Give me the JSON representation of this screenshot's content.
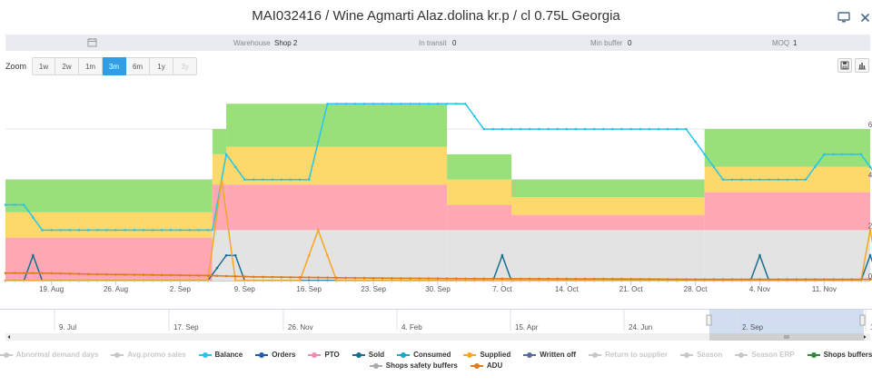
{
  "header": {
    "title": "MAI032416 / Wine Agmarti Alaz.dolina kr.p / cl 0.75L Georgia",
    "monitor_icon": "monitor-icon",
    "close_icon": "close-icon"
  },
  "infobar": {
    "warehouse_label": "Warehouse",
    "warehouse_value": "Shop 2",
    "in_transit_label": "In transit",
    "in_transit_value": "0",
    "min_buffer_label": "Min buffer",
    "min_buffer_value": "0",
    "moq_label": "MOQ",
    "moq_value": "1"
  },
  "zoom": {
    "label": "Zoom",
    "buttons": [
      {
        "label": "1w",
        "state": "normal"
      },
      {
        "label": "2w",
        "state": "normal"
      },
      {
        "label": "1m",
        "state": "normal"
      },
      {
        "label": "3m",
        "state": "active"
      },
      {
        "label": "6m",
        "state": "normal"
      },
      {
        "label": "1y",
        "state": "normal"
      },
      {
        "label": "3y",
        "state": "disabled"
      }
    ]
  },
  "tools": {
    "save_icon": "save-icon",
    "chart_icon": "bar-chart-icon"
  },
  "chart_data": {
    "type": "area",
    "x_tick_labels": [
      "19. Aug",
      "26. Aug",
      "2. Sep",
      "9. Sep",
      "16. Sep",
      "23. Sep",
      "30. Sep",
      "7. Oct",
      "14. Oct",
      "21. Oct",
      "28. Oct",
      "4. Nov",
      "11. Nov"
    ],
    "x_start_tick": "19. Aug",
    "days_start": -5,
    "days_end": 89,
    "y_tick_labels": [
      "0",
      "2",
      "4",
      "6"
    ],
    "ylim": [
      0,
      7.8
    ],
    "grid": true,
    "buffer_zones": [
      {
        "from": -5,
        "to": 17.5,
        "grey": 0,
        "red": 1.7,
        "yellow": 2.7,
        "green": 4.0
      },
      {
        "from": 17.5,
        "to": 19,
        "grey": 2.0,
        "red": 3.8,
        "yellow": 5.0,
        "green": 6.0
      },
      {
        "from": 19,
        "to": 43,
        "grey": 2.0,
        "red": 3.8,
        "yellow": 5.3,
        "green": 7.0
      },
      {
        "from": 43,
        "to": 50,
        "grey": 2.0,
        "red": 3.0,
        "yellow": 4.0,
        "green": 5.0
      },
      {
        "from": 50,
        "to": 71,
        "grey": 2.0,
        "red": 2.6,
        "yellow": 3.3,
        "green": 4.0
      },
      {
        "from": 71,
        "to": 89,
        "grey": 2.0,
        "red": 3.5,
        "yellow": 4.5,
        "green": 6.0
      },
      {
        "from": 89,
        "to": 98,
        "grey": 2.0,
        "red": 3.2,
        "yellow": 4.0,
        "green": 5.0
      },
      {
        "from": 98,
        "to": 103,
        "grey": 2.0,
        "red": 2.7,
        "yellow": 3.4,
        "green": 4.0
      },
      {
        "from": 103,
        "to": 125,
        "grey": 1.5,
        "red": 1.9,
        "yellow": 2.4,
        "green": 3.0
      }
    ],
    "series": [
      {
        "name": "Balance",
        "color": "#29c4e8",
        "points": [
          [
            -5,
            3
          ],
          [
            -3,
            3
          ],
          [
            -1,
            2
          ],
          [
            16,
            2
          ],
          [
            17.5,
            2
          ],
          [
            19,
            5
          ],
          [
            21,
            4
          ],
          [
            28,
            4
          ],
          [
            30,
            7
          ],
          [
            45,
            7
          ],
          [
            47,
            6
          ],
          [
            69,
            6
          ],
          [
            73,
            4
          ],
          [
            82,
            4
          ],
          [
            84,
            5
          ],
          [
            88,
            5
          ],
          [
            90,
            4
          ],
          [
            93,
            4
          ],
          [
            95,
            3
          ],
          [
            99,
            3
          ],
          [
            104,
            1
          ],
          [
            105,
            2
          ],
          [
            114,
            2
          ],
          [
            117,
            1
          ],
          [
            125,
            1
          ]
        ]
      },
      {
        "name": "Sold",
        "color": "#1a6f8f",
        "points": [
          [
            -5,
            0
          ],
          [
            -3,
            0
          ],
          [
            -2,
            1
          ],
          [
            -1,
            0
          ],
          [
            17,
            0
          ],
          [
            19,
            1
          ],
          [
            20,
            1
          ],
          [
            21,
            0
          ],
          [
            48,
            0
          ],
          [
            49,
            1
          ],
          [
            50,
            0
          ],
          [
            76,
            0
          ],
          [
            77,
            1
          ],
          [
            78,
            0
          ],
          [
            88,
            0
          ],
          [
            89,
            1
          ],
          [
            90,
            0
          ],
          [
            92,
            0
          ],
          [
            93,
            1
          ],
          [
            94,
            0
          ],
          [
            97,
            0
          ],
          [
            98,
            1
          ],
          [
            99,
            0
          ],
          [
            104,
            0
          ],
          [
            105,
            1
          ],
          [
            106,
            0
          ],
          [
            116,
            0
          ],
          [
            117,
            1
          ],
          [
            118,
            0
          ],
          [
            125,
            0
          ]
        ]
      },
      {
        "name": "Supplied",
        "color": "#f5a623",
        "points": [
          [
            -5,
            0
          ],
          [
            17,
            0
          ],
          [
            18.5,
            4
          ],
          [
            20,
            0
          ],
          [
            27,
            0
          ],
          [
            29,
            2
          ],
          [
            31,
            0
          ],
          [
            88,
            0
          ],
          [
            89,
            2
          ],
          [
            90,
            0
          ],
          [
            104,
            0
          ],
          [
            105,
            1
          ],
          [
            106,
            0
          ],
          [
            125,
            0
          ]
        ]
      },
      {
        "name": "ADU",
        "color": "#e07b1a",
        "points": [
          [
            -5,
            0.3
          ],
          [
            -1,
            0.3
          ],
          [
            5,
            0.25
          ],
          [
            17,
            0.2
          ],
          [
            22,
            0.15
          ],
          [
            35,
            0.1
          ],
          [
            45,
            0.08
          ],
          [
            60,
            0.07
          ],
          [
            70,
            0.05
          ],
          [
            85,
            0.05
          ],
          [
            103,
            0.05
          ],
          [
            110,
            0.1
          ],
          [
            125,
            0.1
          ]
        ]
      }
    ]
  },
  "navigator": {
    "tick_labels": [
      "9. Jul",
      "17. Sep",
      "26. Nov",
      "4. Feb",
      "15. Apr",
      "24. Jun",
      "2. Sep",
      "11. N"
    ]
  },
  "legend": {
    "row1": [
      {
        "label": "Abnormal demand days",
        "color": "#c8c8c8",
        "off": true
      },
      {
        "label": "Avg.promo sales",
        "color": "#c8c8c8",
        "off": true
      },
      {
        "label": "Balance",
        "color": "#29c4e8",
        "off": false
      },
      {
        "label": "Orders",
        "color": "#1d5fa8",
        "off": false
      },
      {
        "label": "PTO",
        "color": "#f08cb4",
        "off": false
      },
      {
        "label": "Sold",
        "color": "#1a6f8f",
        "off": false
      },
      {
        "label": "Consumed",
        "color": "#1aa7c4",
        "off": false
      },
      {
        "label": "Supplied",
        "color": "#f5a623",
        "off": false
      },
      {
        "label": "Written off",
        "color": "#5a6a9a",
        "off": false
      },
      {
        "label": "Return to supplier",
        "color": "#c8c8c8",
        "off": true
      },
      {
        "label": "Season",
        "color": "#c8c8c8",
        "off": true
      },
      {
        "label": "Season ERP",
        "color": "#c8c8c8",
        "off": true
      },
      {
        "label": "Shops buffers",
        "color": "#2e8b3a",
        "off": false
      }
    ],
    "row2": [
      {
        "label": "Shops safety buffers",
        "color": "#aaaaaa",
        "off": false
      },
      {
        "label": "ADU",
        "color": "#e07b1a",
        "off": false
      }
    ]
  }
}
